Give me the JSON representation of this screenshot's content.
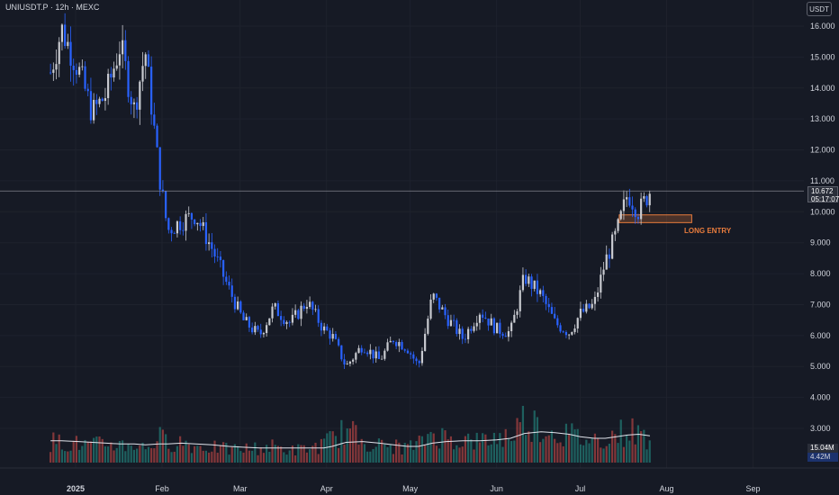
{
  "header": {
    "symbol_title": "UNIUSDT.P · 12h · MEXC"
  },
  "price_scale": {
    "currency": "USDT",
    "ticks": [
      "16.000",
      "15.000",
      "14.000",
      "13.000",
      "12.000",
      "11.000",
      "10.000",
      "9.000",
      "8.000",
      "7.000",
      "6.000",
      "5.000",
      "4.000",
      "3.000"
    ],
    "last_price": "10.672",
    "countdown": "05:17:07",
    "volume_value": "15.04M",
    "volume_ma_value": "4.42M"
  },
  "time_axis": {
    "labels": [
      "2025",
      "Feb",
      "Mar",
      "Apr",
      "May",
      "Jun",
      "Jul",
      "Aug",
      "Sep"
    ]
  },
  "annotation": {
    "text": "LONG ENTRY",
    "zone_low": 9.65,
    "zone_high": 9.9
  },
  "colors": {
    "background": "#161a25",
    "up_candle": "#c8cad0",
    "down_candle": "#2962ff",
    "volume_up": "#26a69a",
    "volume_down": "#ef5350",
    "entry_zone": "#e87c3d"
  },
  "chart_data": {
    "type": "line",
    "title": "",
    "xlabel": "",
    "ylabel": "",
    "ylim": [
      2.3,
      16.7
    ],
    "x": [
      "2024-12-23",
      "2024-12-27",
      "2025-01-02",
      "2025-01-07",
      "2025-01-12",
      "2025-01-17",
      "2025-01-22",
      "2025-01-26",
      "2025-01-31",
      "2025-02-03",
      "2025-02-08",
      "2025-02-13",
      "2025-02-19",
      "2025-02-25",
      "2025-03-02",
      "2025-03-08",
      "2025-03-13",
      "2025-03-19",
      "2025-03-25",
      "2025-03-31",
      "2025-04-03",
      "2025-04-08",
      "2025-04-14",
      "2025-04-20",
      "2025-04-25",
      "2025-04-30",
      "2025-05-04",
      "2025-05-09",
      "2025-05-14",
      "2025-05-20",
      "2025-05-26",
      "2025-06-01",
      "2025-06-06",
      "2025-06-11",
      "2025-06-17",
      "2025-06-22",
      "2025-06-27",
      "2025-07-01",
      "2025-07-06",
      "2025-07-10",
      "2025-07-14",
      "2025-07-18",
      "2025-07-22",
      "2025-07-26"
    ],
    "series": [
      {
        "values": [
          14.5,
          15.9,
          14.6,
          13.2,
          13.8,
          15.4,
          13.3,
          15.2,
          11.2,
          9.4,
          9.7,
          9.9,
          8.8,
          7.5,
          6.5,
          6.0,
          6.9,
          6.4,
          7.1,
          6.2,
          6.0,
          5.0,
          5.7,
          5.2,
          5.9,
          5.6,
          5.0,
          7.3,
          6.6,
          5.9,
          6.8,
          6.2,
          6.1,
          7.9,
          7.3,
          6.4,
          6.1,
          6.7,
          7.0,
          8.4,
          9.3,
          10.6,
          10.0,
          10.67
        ]
      }
    ],
    "volume": {
      "values": [
        2.6,
        2.5,
        2.3,
        2.1,
        2.4,
        2.2,
        2.3,
        1.8,
        3.1,
        2.5,
        2.6,
        2.0,
        1.9,
        1.6,
        1.7,
        1.8,
        2.0,
        1.5,
        1.7,
        2.2,
        3.0,
        4.0,
        2.8,
        2.1,
        2.0,
        1.9,
        2.2,
        3.8,
        3.0,
        2.8,
        2.6,
        3.1,
        3.3,
        5.5,
        4.4,
        3.7,
        3.5,
        3.0,
        2.8,
        3.2,
        3.5,
        4.0,
        3.6,
        3.0
      ],
      "ma_values": [
        2.7,
        2.7,
        2.6,
        2.5,
        2.4,
        2.3,
        2.3,
        2.2,
        2.3,
        2.3,
        2.4,
        2.3,
        2.2,
        2.0,
        1.9,
        1.8,
        1.8,
        1.8,
        1.8,
        1.8,
        2.0,
        2.5,
        2.6,
        2.4,
        2.2,
        2.0,
        2.0,
        2.4,
        2.6,
        2.7,
        2.7,
        2.8,
        3.0,
        3.6,
        3.8,
        3.7,
        3.5,
        3.2,
        3.0,
        3.0,
        3.2,
        3.4,
        3.5,
        3.3
      ]
    }
  }
}
